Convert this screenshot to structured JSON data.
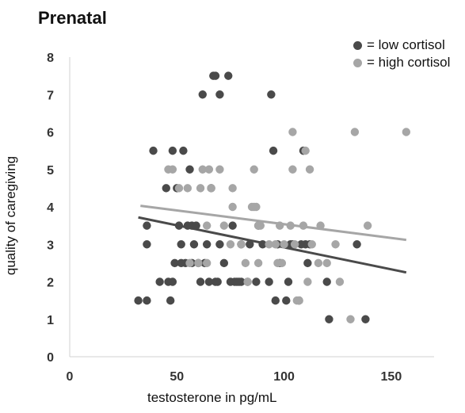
{
  "chart_data": {
    "type": "scatter",
    "title": "Prenatal",
    "xlabel": "testosterone in pg/mL",
    "ylabel": "quality of caregiving",
    "xlim": [
      0,
      170
    ],
    "ylim": [
      0,
      8
    ],
    "x_ticks": [
      "0",
      "50",
      "100",
      "150"
    ],
    "y_ticks": [
      "0",
      "1",
      "2",
      "3",
      "4",
      "5",
      "6",
      "7",
      "8"
    ],
    "grid": false,
    "legend_position": "top-right",
    "series": [
      {
        "name": "= low cortisol",
        "color": "#4a4a4a",
        "points": [
          [
            32,
            1.5
          ],
          [
            36,
            1.5
          ],
          [
            36,
            3.5
          ],
          [
            36,
            3
          ],
          [
            39,
            5.5
          ],
          [
            42,
            2
          ],
          [
            45,
            4.5
          ],
          [
            46,
            2
          ],
          [
            47,
            1.5
          ],
          [
            48,
            2
          ],
          [
            48,
            5.5
          ],
          [
            49,
            2.5
          ],
          [
            50,
            4.5
          ],
          [
            51,
            3.5
          ],
          [
            52,
            3
          ],
          [
            52,
            2.5
          ],
          [
            53,
            5.5
          ],
          [
            54,
            2.5
          ],
          [
            55,
            3.5
          ],
          [
            56,
            5
          ],
          [
            57,
            3.5
          ],
          [
            57,
            2.5
          ],
          [
            58,
            3
          ],
          [
            59,
            3.5
          ],
          [
            60,
            2.5
          ],
          [
            61,
            2
          ],
          [
            62,
            7
          ],
          [
            63,
            2.5
          ],
          [
            64,
            3
          ],
          [
            65,
            2
          ],
          [
            66,
            4.5
          ],
          [
            67,
            7.5
          ],
          [
            68,
            7.5
          ],
          [
            68,
            2
          ],
          [
            69,
            2
          ],
          [
            70,
            7
          ],
          [
            70,
            3
          ],
          [
            72,
            2.5
          ],
          [
            74,
            7.5
          ],
          [
            75,
            2
          ],
          [
            76,
            3.5
          ],
          [
            77,
            2
          ],
          [
            78,
            2
          ],
          [
            79,
            2
          ],
          [
            80,
            2
          ],
          [
            80,
            3
          ],
          [
            83,
            2
          ],
          [
            84,
            3
          ],
          [
            87,
            2
          ],
          [
            88,
            3.5
          ],
          [
            90,
            3
          ],
          [
            93,
            2
          ],
          [
            94,
            7
          ],
          [
            95,
            5.5
          ],
          [
            96,
            1.5
          ],
          [
            97,
            3
          ],
          [
            98,
            2.5
          ],
          [
            101,
            1.5
          ],
          [
            102,
            2
          ],
          [
            103,
            3
          ],
          [
            104,
            3
          ],
          [
            107,
            1.5
          ],
          [
            108,
            3
          ],
          [
            109,
            5.5
          ],
          [
            110,
            3
          ],
          [
            111,
            2.5
          ],
          [
            112,
            3
          ],
          [
            120,
            2
          ],
          [
            121,
            1
          ],
          [
            134,
            3
          ],
          [
            138,
            1
          ]
        ]
      },
      {
        "name": "= high cortisol",
        "color": "#a6a6a6",
        "points": [
          [
            46,
            5
          ],
          [
            48,
            5
          ],
          [
            51,
            4.5
          ],
          [
            55,
            4.5
          ],
          [
            56,
            2.5
          ],
          [
            60,
            2.5
          ],
          [
            61,
            4.5
          ],
          [
            62,
            5
          ],
          [
            64,
            3.5
          ],
          [
            64,
            2.5
          ],
          [
            65,
            5
          ],
          [
            66,
            4.5
          ],
          [
            70,
            5
          ],
          [
            72,
            3.5
          ],
          [
            75,
            3
          ],
          [
            76,
            4.5
          ],
          [
            76,
            4
          ],
          [
            80,
            3
          ],
          [
            82,
            2.5
          ],
          [
            83,
            2
          ],
          [
            85,
            4
          ],
          [
            86,
            5
          ],
          [
            86,
            4
          ],
          [
            87,
            4
          ],
          [
            88,
            2.5
          ],
          [
            88,
            3.5
          ],
          [
            89,
            3.5
          ],
          [
            93,
            3
          ],
          [
            96,
            3
          ],
          [
            97,
            2.5
          ],
          [
            98,
            3.5
          ],
          [
            99,
            2.5
          ],
          [
            100,
            3
          ],
          [
            103,
            3.5
          ],
          [
            104,
            6
          ],
          [
            104,
            5
          ],
          [
            105,
            3
          ],
          [
            106,
            1.5
          ],
          [
            107,
            1.5
          ],
          [
            109,
            3.5
          ],
          [
            110,
            5.5
          ],
          [
            111,
            2
          ],
          [
            112,
            5
          ],
          [
            113,
            3
          ],
          [
            116,
            2.5
          ],
          [
            117,
            3.5
          ],
          [
            120,
            2.5
          ],
          [
            124,
            3
          ],
          [
            126,
            2
          ],
          [
            131,
            1
          ],
          [
            133,
            6
          ],
          [
            139,
            3.5
          ],
          [
            157,
            6
          ]
        ]
      }
    ],
    "trendlines": [
      {
        "series": "= low cortisol",
        "color": "#4a4a4a",
        "x": [
          32,
          157
        ],
        "y": [
          3.72,
          2.25
        ]
      },
      {
        "series": "= high cortisol",
        "color": "#a6a6a6",
        "x": [
          33,
          157
        ],
        "y": [
          4.03,
          3.12
        ]
      }
    ]
  }
}
